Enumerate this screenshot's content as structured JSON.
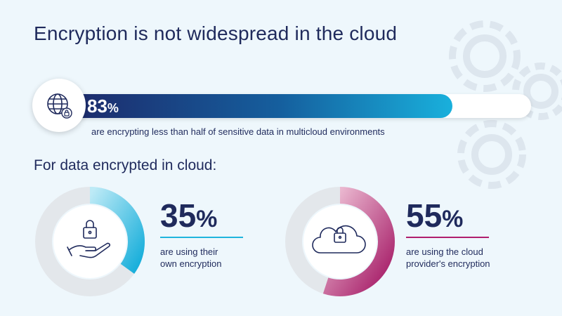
{
  "title": "Encryption is not widespread in the cloud",
  "headline_stat": {
    "number": "83",
    "unit": "%",
    "fraction": 0.83,
    "caption": "are encrypting less than half of sensitive data in multicloud environments",
    "icon": "globe-lock-icon"
  },
  "subtitle": "For data encrypted in cloud:",
  "stats": [
    {
      "number": "35",
      "unit": "%",
      "fraction": 0.35,
      "caption_line1": "are using their",
      "caption_line2": "own encryption",
      "color": "#1fb4dd",
      "icon": "hand-lock-icon"
    },
    {
      "number": "55",
      "unit": "%",
      "fraction": 0.55,
      "caption_line1": "are using the cloud",
      "caption_line2": "provider's encryption",
      "color": "#b01f6e",
      "icon": "cloud-lock-icon"
    }
  ],
  "colors": {
    "navy": "#1f2a5c",
    "cyan": "#1fb4dd",
    "magenta": "#b01f6e",
    "background": "#eef7fc"
  }
}
